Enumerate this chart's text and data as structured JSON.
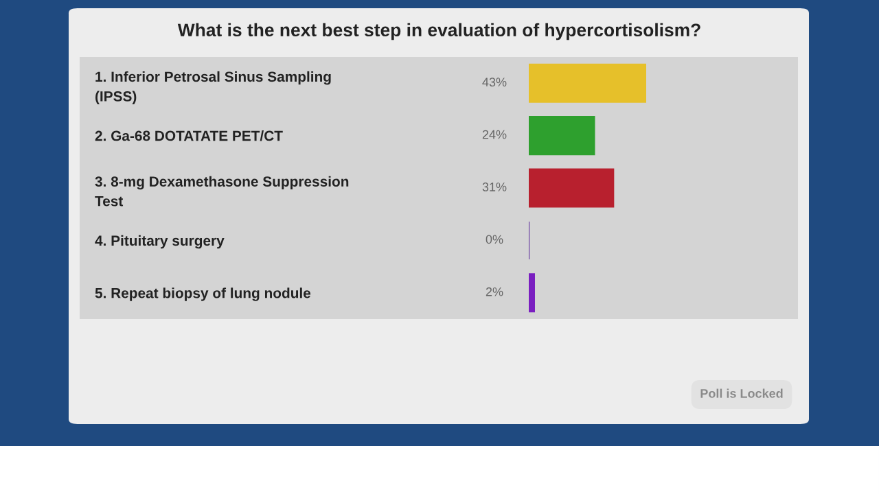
{
  "chart_data": {
    "type": "bar",
    "orientation": "horizontal",
    "title": "What is the next best step in evaluation of hypercortisolism?",
    "categories": [
      "1. Inferior Petrosal Sinus Sampling\n(IPSS)",
      "2. Ga-68 DOTATATE PET/CT",
      "3. 8-mg Dexamethasone Suppression\nTest",
      "4. Pituitary surgery",
      "5. Repeat biopsy of lung nodule"
    ],
    "values": [
      43,
      24,
      31,
      0,
      2
    ],
    "value_labels": [
      "43%",
      "24%",
      "31%",
      "0%",
      "2%"
    ],
    "colors": [
      "#e6c02a",
      "#2ea02e",
      "#b8202e",
      "#5a2a9a",
      "#7a1fc0"
    ],
    "tick_labels": "y",
    "grid": false,
    "legend": false,
    "annotations": [
      "Poll is Locked"
    ]
  }
}
